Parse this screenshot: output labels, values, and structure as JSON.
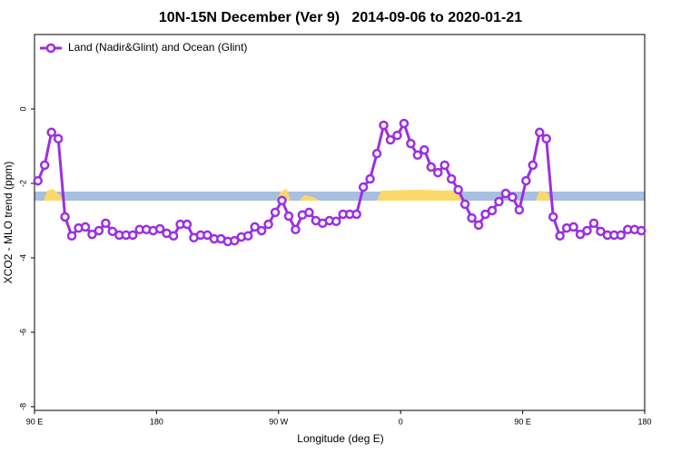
{
  "chart_data": {
    "type": "line",
    "title": "10N-15N December (Ver 9)   2014-09-06 to 2020-01-21",
    "x_label": "Longitude (deg E)",
    "y_label": "XCO2 - MLO trend (ppm)",
    "x": [
      92.5,
      97.5,
      102.5,
      107.5,
      112.5,
      117.5,
      122.5,
      127.5,
      132.5,
      137.5,
      142.5,
      147.5,
      152.5,
      157.5,
      162.5,
      167.5,
      172.5,
      177.5,
      182.5,
      187.5,
      192.5,
      197.5,
      202.5,
      207.5,
      212.5,
      217.5,
      222.5,
      227.5,
      232.5,
      237.5,
      242.5,
      247.5,
      252.5,
      257.5,
      262.5,
      267.5,
      272.5,
      277.5,
      282.5,
      287.5,
      292.5,
      297.5,
      302.5,
      307.5,
      312.5,
      317.5,
      322.5,
      327.5,
      332.5,
      337.5,
      342.5,
      347.5,
      352.5,
      357.5,
      362.5,
      367.5,
      372.5,
      377.5,
      382.5,
      387.5,
      392.5,
      397.5,
      402.5,
      407.5,
      412.5,
      417.5,
      422.5,
      427.5,
      432.5,
      437.5,
      442.5,
      447.5,
      452.5,
      457.5,
      462.5,
      467.5,
      472.5,
      477.5,
      482.5,
      487.5,
      492.5,
      497.5,
      502.5,
      507.5,
      512.5,
      517.5,
      522.5,
      527.5,
      532.5,
      537.5
    ],
    "series": [
      {
        "name": "Land (Nadir&Glint) and Ocean (Glint)",
        "color": "#9b30e0",
        "values": [
          -1.93,
          -1.51,
          -0.63,
          -0.8,
          -2.9,
          -3.41,
          -3.2,
          -3.17,
          -3.37,
          -3.27,
          -3.07,
          -3.29,
          -3.39,
          -3.39,
          -3.39,
          -3.24,
          -3.24,
          -3.27,
          -3.22,
          -3.34,
          -3.41,
          -3.1,
          -3.1,
          -3.46,
          -3.39,
          -3.39,
          -3.49,
          -3.49,
          -3.56,
          -3.54,
          -3.44,
          -3.41,
          -3.17,
          -3.27,
          -3.1,
          -2.78,
          -2.46,
          -2.88,
          -3.24,
          -2.85,
          -2.78,
          -3.0,
          -3.07,
          -3.0,
          -3.02,
          -2.83,
          -2.83,
          -2.83,
          -2.1,
          -1.88,
          -1.2,
          -0.44,
          -0.83,
          -0.71,
          -0.39,
          -0.93,
          -1.24,
          -1.1,
          -1.56,
          -1.71,
          -1.51,
          -1.88,
          -2.17,
          -2.56,
          -2.93,
          -3.12,
          -2.83,
          -2.73,
          -2.49,
          -2.27,
          -2.37,
          -2.71,
          -1.93,
          -1.51,
          -0.63,
          -0.8,
          -2.9,
          -3.41,
          -3.2,
          -3.17,
          -3.37,
          -3.27,
          -3.07,
          -3.29,
          -3.39,
          -3.39,
          -3.39,
          -3.24,
          -3.24,
          -3.27
        ]
      }
    ],
    "xlim": [
      90,
      540
    ],
    "xticks": [
      {
        "value": 90,
        "label": "90 E"
      },
      {
        "value": 180,
        "label": "180"
      },
      {
        "value": 270,
        "label": "90 W"
      },
      {
        "value": 360,
        "label": "0"
      },
      {
        "value": 450,
        "label": "90 E"
      },
      {
        "value": 540,
        "label": "180"
      }
    ],
    "ylim": [
      -8.1,
      2
    ],
    "yticks": [
      0,
      -2,
      -4,
      -6,
      -8
    ],
    "legend": "top-left"
  }
}
